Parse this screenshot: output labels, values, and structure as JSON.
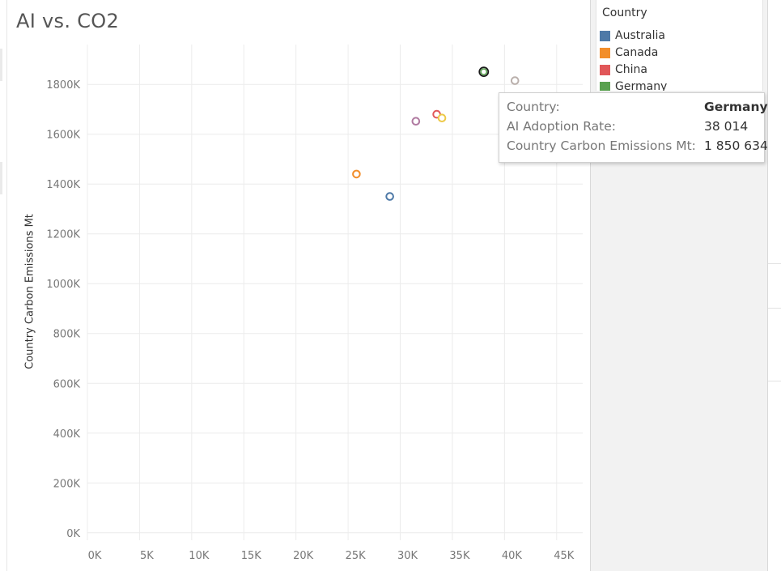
{
  "chart_data": {
    "type": "scatter",
    "title": "AI vs. CO2",
    "xlabel": "",
    "ylabel": "Country Carbon Emissions Mt",
    "xlim": [
      0,
      47500
    ],
    "ylim": [
      -30000,
      1960000
    ],
    "x_ticks": [
      0,
      5000,
      10000,
      15000,
      20000,
      25000,
      30000,
      35000,
      40000,
      45000
    ],
    "x_tick_labels": [
      "0K",
      "5K",
      "10K",
      "15K",
      "20K",
      "25K",
      "30K",
      "35K",
      "40K",
      "45K"
    ],
    "y_ticks": [
      0,
      200000,
      400000,
      600000,
      800000,
      1000000,
      1200000,
      1400000,
      1600000,
      1800000
    ],
    "y_tick_labels": [
      "0K",
      "200K",
      "400K",
      "600K",
      "800K",
      "1000K",
      "1200K",
      "1400K",
      "1600K",
      "1800K"
    ],
    "grid": true,
    "marker": "hollow-circle",
    "points": [
      {
        "x": 29000,
        "y": 1350000,
        "color": "#4e79a7"
      },
      {
        "x": 25800,
        "y": 1440000,
        "color": "#f28e2b"
      },
      {
        "x": 33500,
        "y": 1680000,
        "color": "#e15759"
      },
      {
        "x": 38014,
        "y": 1850634,
        "color": "#59a14f",
        "highlighted": true
      },
      {
        "x": 34000,
        "y": 1665000,
        "color": "#edc948"
      },
      {
        "x": 31500,
        "y": 1652000,
        "color": "#b07aa1"
      },
      {
        "x": 41000,
        "y": 1815000,
        "color": "#bab0ac"
      }
    ]
  },
  "legend": {
    "title": "Country",
    "items": [
      {
        "label": "Australia",
        "color": "#4e79a7"
      },
      {
        "label": "Canada",
        "color": "#f28e2b"
      },
      {
        "label": "China",
        "color": "#e15759"
      },
      {
        "label": "Germany",
        "color": "#59a14f"
      }
    ]
  },
  "tooltip": {
    "rows": [
      {
        "label": "Country:",
        "value": "Germany",
        "bold": true
      },
      {
        "label": "AI Adoption Rate:",
        "value": "38 014",
        "bold": false
      },
      {
        "label": "Country Carbon Emissions Mt:",
        "value": "1 850 634",
        "bold": false
      }
    ]
  }
}
